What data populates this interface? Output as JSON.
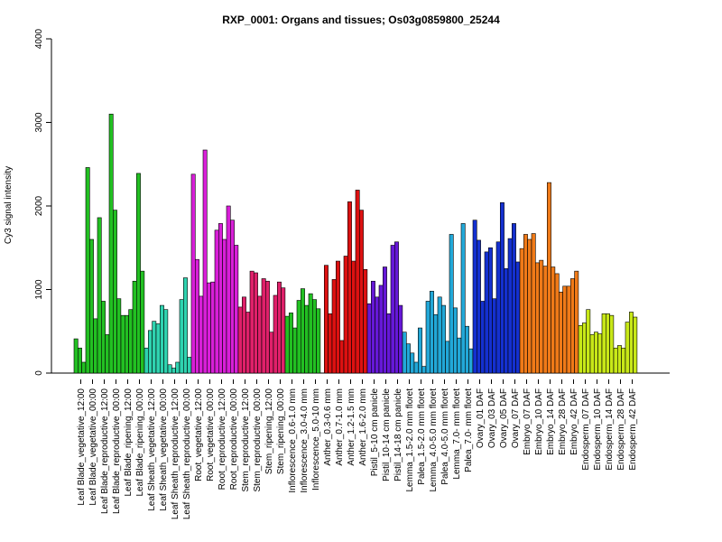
{
  "chart_data": {
    "type": "bar",
    "title": "RXP_0001: Organs and tissues; Os03g0859800_25244",
    "xlabel": "",
    "ylabel": "Cy3 signal intensity",
    "ylim": [
      0,
      4000
    ],
    "yticks": [
      0,
      1000,
      2000,
      3000,
      4000
    ],
    "grid": false,
    "groups": [
      {
        "color": "#22c022",
        "bars": [
          410,
          300,
          130
        ]
      },
      {
        "color": "#22c022",
        "bars": [
          2460,
          1600,
          650
        ]
      },
      {
        "color": "#22c022",
        "bars": [
          1860,
          860,
          460
        ]
      },
      {
        "color": "#22c022",
        "bars": [
          3100,
          1950,
          890
        ]
      },
      {
        "color": "#22c022",
        "bars": [
          690,
          690,
          760
        ]
      },
      {
        "color": "#22c022",
        "bars": [
          1100,
          2390,
          1220
        ]
      },
      {
        "color": "#2fd3b0",
        "bars": [
          300,
          510,
          620
        ]
      },
      {
        "color": "#2fd3b0",
        "bars": [
          590,
          810,
          760
        ]
      },
      {
        "color": "#2fd3b0",
        "bars": [
          100,
          60,
          130
        ]
      },
      {
        "color": "#2fd3b0",
        "bars": [
          880,
          1140,
          190
        ]
      },
      {
        "color": "#d81fd8",
        "bars": [
          2380,
          1360,
          920
        ]
      },
      {
        "color": "#d81fd8",
        "bars": [
          2670,
          1080,
          1090
        ]
      },
      {
        "color": "#d81fd8",
        "bars": [
          1710,
          1790,
          1600
        ]
      },
      {
        "color": "#d81fd8",
        "bars": [
          2000,
          1830,
          1530
        ]
      },
      {
        "color": "#e0206a",
        "bars": [
          790,
          910,
          730
        ]
      },
      {
        "color": "#e0206a",
        "bars": [
          1220,
          1200,
          920
        ]
      },
      {
        "color": "#e0206a",
        "bars": [
          1130,
          1100,
          490
        ]
      },
      {
        "color": "#e0206a",
        "bars": [
          930,
          1090,
          1020
        ]
      },
      {
        "color": "#22c022",
        "bars": [
          680,
          720,
          540
        ]
      },
      {
        "color": "#22c022",
        "bars": [
          870,
          1010,
          810
        ]
      },
      {
        "color": "#22c022",
        "bars": [
          950,
          880,
          770
        ]
      },
      {
        "color": "#dd1111",
        "bars": [
          0,
          1290,
          710
        ]
      },
      {
        "color": "#dd1111",
        "bars": [
          1120,
          1340,
          390
        ]
      },
      {
        "color": "#dd1111",
        "bars": [
          1400,
          2050,
          1340
        ]
      },
      {
        "color": "#dd1111",
        "bars": [
          2190,
          1950,
          1240
        ]
      },
      {
        "color": "#6618d8",
        "bars": [
          830,
          1100,
          910
        ]
      },
      {
        "color": "#6618d8",
        "bars": [
          1050,
          1270,
          710
        ]
      },
      {
        "color": "#6618d8",
        "bars": [
          1530,
          1570,
          810
        ]
      },
      {
        "color": "#22a8d8",
        "bars": [
          490,
          350,
          240
        ]
      },
      {
        "color": "#22a8d8",
        "bars": [
          130,
          540,
          80
        ]
      },
      {
        "color": "#22a8d8",
        "bars": [
          860,
          980,
          700
        ]
      },
      {
        "color": "#22a8d8",
        "bars": [
          910,
          810,
          380
        ]
      },
      {
        "color": "#22a8d8",
        "bars": [
          1660,
          780,
          420
        ]
      },
      {
        "color": "#22a8d8",
        "bars": [
          1790,
          560,
          290
        ]
      },
      {
        "color": "#1430d0",
        "bars": [
          1830,
          1590,
          860
        ]
      },
      {
        "color": "#1430d0",
        "bars": [
          1450,
          1500,
          890
        ]
      },
      {
        "color": "#1430d0",
        "bars": [
          1570,
          2040,
          1250
        ]
      },
      {
        "color": "#1430d0",
        "bars": [
          1610,
          1790,
          1330
        ]
      },
      {
        "color": "#f07a18",
        "bars": [
          1490,
          1660,
          1600
        ]
      },
      {
        "color": "#f07a18",
        "bars": [
          1670,
          1320,
          1350
        ]
      },
      {
        "color": "#f07a18",
        "bars": [
          1280,
          2280,
          1270
        ]
      },
      {
        "color": "#f07a18",
        "bars": [
          1190,
          970,
          1040
        ]
      },
      {
        "color": "#f07a18",
        "bars": [
          1040,
          1130,
          1220
        ]
      },
      {
        "color": "#c8e818",
        "bars": [
          570,
          600,
          760
        ]
      },
      {
        "color": "#c8e818",
        "bars": [
          460,
          490,
          470
        ]
      },
      {
        "color": "#c8e818",
        "bars": [
          710,
          710,
          690
        ]
      },
      {
        "color": "#c8e818",
        "bars": [
          300,
          330,
          300
        ]
      },
      {
        "color": "#c8e818",
        "bars": [
          610,
          730,
          670
        ]
      }
    ],
    "tick_labels": [
      "Leaf Blade_vegetative_12:00",
      "Leaf Blade_vegetative_00:00",
      "Leaf Blade_reproductive_12:00",
      "Leaf Blade_reproductive_00:00",
      "Leaf Blade_ripening_12:00",
      "Leaf Blade_ripening_00:00",
      "Leaf Sheath_vegetative_12:00",
      "Leaf Sheath_vegetative_00:00",
      "Leaf Sheath_reproductive_12:00",
      "Leaf Sheath_reproductive_00:00",
      "Root_vegetative_12:00",
      "Root_vegetative_00:00",
      "Root_reproductive_12:00",
      "Root_reproductive_00:00",
      "Stem_reproductive_12:00",
      "Stem_reproductive_00:00",
      "Stem_ripening_12:00",
      "Stem_ripening_00:00",
      "Inflorescence_0.6-1.0 mm",
      "Inflorescence_3.0-4.0 mm",
      "Inflorescence_5.0-10 mm",
      "Anther_0.3-0.6 mm",
      "Anther_0.7-1.0 mm",
      "Anther_1.2-1.5 mm",
      "Anther_1.6-2.0 mm",
      "Pistil_5-10 cm panicle",
      "Pistil_10-14 cm panicle",
      "Pistil_14-18 cm panicle",
      "Lemma_1.5-2.0 mm floret",
      "Palea_1.5-2.0 mm floret",
      "Lemma_4.0-5.0 mm floret",
      "Palea_4.0-5.0 mm floret",
      "Lemma_7.0- mm floret",
      "Palea_7.0- mm floret",
      "Ovary_01 DAF",
      "Ovary_03 DAF",
      "Ovary_05 DAF",
      "Ovary_07 DAF",
      "Embryo_07 DAF",
      "Embryo_10 DAF",
      "Embryo_14 DAF",
      "Embryo_28 DAF",
      "Embryo_42 DAF",
      "Endosperm_07 DAF",
      "Endosperm_10 DAF",
      "Endosperm_14 DAF",
      "Endosperm_28 DAF",
      "Endosperm_42 DAF"
    ]
  }
}
